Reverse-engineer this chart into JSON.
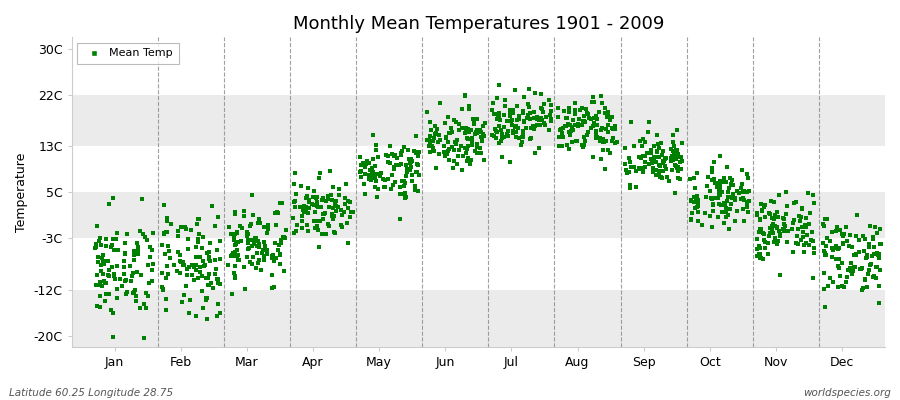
{
  "title": "Monthly Mean Temperatures 1901 - 2009",
  "ylabel": "Temperature",
  "xlabel_bottom_left": "Latitude 60.25 Longitude 28.75",
  "xlabel_bottom_right": "worldspecies.org",
  "legend_label": "Mean Temp",
  "dot_color": "#008000",
  "bg_color": "#ffffff",
  "band_color_light": "#ffffff",
  "band_color_dark": "#ebebeb",
  "ytick_labels": [
    "-20C",
    "-12C",
    "-3C",
    "5C",
    "13C",
    "22C",
    "30C"
  ],
  "ytick_values": [
    -20,
    -12,
    -3,
    5,
    13,
    22,
    30
  ],
  "ylim": [
    -22,
    32
  ],
  "months": [
    "Jan",
    "Feb",
    "Mar",
    "Apr",
    "May",
    "Jun",
    "Jul",
    "Aug",
    "Sep",
    "Oct",
    "Nov",
    "Dec"
  ],
  "monthly_means": [
    -8.5,
    -8.0,
    -4.0,
    2.0,
    9.0,
    14.5,
    17.5,
    16.0,
    10.5,
    4.5,
    -1.5,
    -6.0
  ],
  "monthly_stds": [
    4.5,
    4.5,
    3.5,
    2.5,
    2.5,
    2.5,
    2.5,
    2.5,
    2.5,
    2.5,
    3.0,
    3.5
  ],
  "n_years": 109,
  "seed": 42
}
